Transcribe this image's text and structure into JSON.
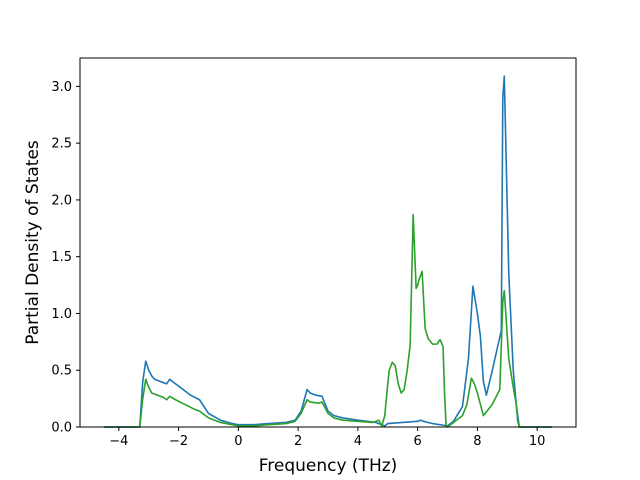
{
  "chart_data": {
    "type": "line",
    "title": "",
    "xlabel": "Frequency (THz)",
    "ylabel": "Partial Density of States",
    "xlim": [
      -5.3,
      11.3
    ],
    "ylim": [
      0,
      3.25
    ],
    "x_ticks": [
      -4,
      -2,
      0,
      2,
      4,
      6,
      8,
      10
    ],
    "x_tick_labels": [
      "−4",
      "−2",
      "0",
      "2",
      "4",
      "6",
      "8",
      "10"
    ],
    "y_ticks": [
      0.0,
      0.5,
      1.0,
      1.5,
      2.0,
      2.5,
      3.0
    ],
    "y_tick_labels": [
      "0.0",
      "0.5",
      "1.0",
      "1.5",
      "2.0",
      "2.5",
      "3.0"
    ],
    "grid": false,
    "legend": "none",
    "series": [
      {
        "color": "#1f77b4",
        "x": [
          -4.5,
          -3.3,
          -3.2,
          -3.1,
          -3.0,
          -2.9,
          -2.8,
          -2.6,
          -2.4,
          -2.3,
          -2.2,
          -2.0,
          -1.8,
          -1.6,
          -1.3,
          -1.0,
          -0.6,
          -0.2,
          0.0,
          0.5,
          1.0,
          1.6,
          1.9,
          2.1,
          2.3,
          2.4,
          2.6,
          2.8,
          3.0,
          3.2,
          3.5,
          4.0,
          4.6,
          4.8,
          4.9,
          5.0,
          5.5,
          6.0,
          6.1,
          6.2,
          6.5,
          7.0,
          7.2,
          7.5,
          7.7,
          7.85,
          8.0,
          8.1,
          8.2,
          8.3,
          8.5,
          8.8,
          8.85,
          8.9,
          9.05,
          9.2,
          9.3,
          9.4,
          10.0,
          10.5
        ],
        "y": [
          0.0,
          0.0,
          0.4,
          0.58,
          0.5,
          0.45,
          0.42,
          0.4,
          0.38,
          0.42,
          0.4,
          0.36,
          0.32,
          0.28,
          0.24,
          0.12,
          0.06,
          0.03,
          0.02,
          0.02,
          0.03,
          0.04,
          0.06,
          0.14,
          0.33,
          0.3,
          0.28,
          0.27,
          0.14,
          0.1,
          0.08,
          0.06,
          0.04,
          0.02,
          0.01,
          0.03,
          0.04,
          0.05,
          0.06,
          0.05,
          0.03,
          0.01,
          0.05,
          0.18,
          0.6,
          1.24,
          1.0,
          0.8,
          0.4,
          0.28,
          0.5,
          0.85,
          2.9,
          3.09,
          1.35,
          0.5,
          0.2,
          0.0,
          0.0,
          0.0
        ]
      },
      {
        "color": "#2ca02c",
        "x": [
          -4.5,
          -3.3,
          -3.2,
          -3.1,
          -3.0,
          -2.9,
          -2.7,
          -2.5,
          -2.4,
          -2.3,
          -2.1,
          -1.8,
          -1.5,
          -1.3,
          -1.0,
          -0.6,
          -0.2,
          0.0,
          0.5,
          1.0,
          1.6,
          1.9,
          2.1,
          2.3,
          2.4,
          2.7,
          2.8,
          3.0,
          3.2,
          3.5,
          4.0,
          4.5,
          4.7,
          4.8,
          4.9,
          5.0,
          5.05,
          5.15,
          5.25,
          5.35,
          5.45,
          5.55,
          5.65,
          5.75,
          5.85,
          5.95,
          6.0,
          6.05,
          6.15,
          6.25,
          6.35,
          6.5,
          6.65,
          6.75,
          6.85,
          6.9,
          6.95,
          7.0,
          7.2,
          7.5,
          7.65,
          7.8,
          7.9,
          8.0,
          8.1,
          8.2,
          8.35,
          8.5,
          8.75,
          8.85,
          8.9,
          9.05,
          9.2,
          9.3,
          9.35,
          9.4,
          10.0,
          10.5
        ],
        "y": [
          0.0,
          0.0,
          0.25,
          0.42,
          0.35,
          0.3,
          0.28,
          0.26,
          0.24,
          0.27,
          0.24,
          0.2,
          0.16,
          0.14,
          0.08,
          0.04,
          0.02,
          0.01,
          0.01,
          0.02,
          0.03,
          0.05,
          0.12,
          0.24,
          0.22,
          0.21,
          0.22,
          0.12,
          0.08,
          0.06,
          0.05,
          0.04,
          0.06,
          0.01,
          0.1,
          0.38,
          0.5,
          0.57,
          0.54,
          0.38,
          0.3,
          0.33,
          0.5,
          0.72,
          1.87,
          1.22,
          1.25,
          1.3,
          1.37,
          0.87,
          0.78,
          0.73,
          0.73,
          0.77,
          0.71,
          0.3,
          0.02,
          0.0,
          0.04,
          0.1,
          0.2,
          0.43,
          0.38,
          0.3,
          0.2,
          0.1,
          0.15,
          0.2,
          0.33,
          1.1,
          1.2,
          0.6,
          0.35,
          0.2,
          0.05,
          0.0,
          0.0,
          0.0
        ]
      }
    ]
  }
}
